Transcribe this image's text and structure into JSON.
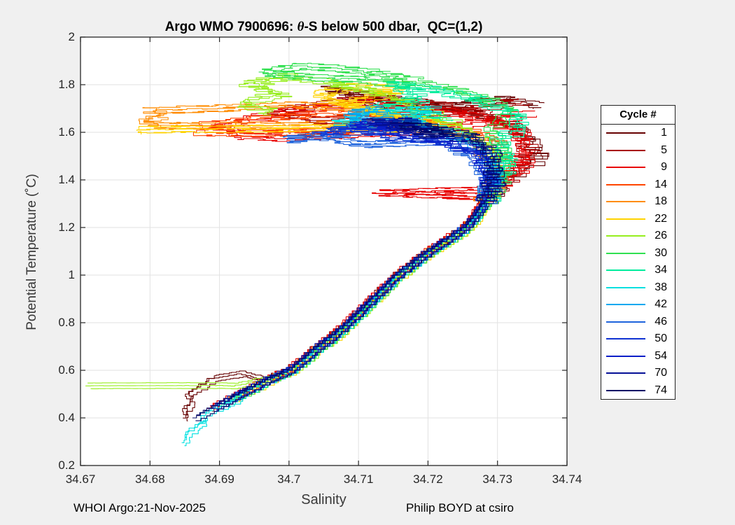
{
  "title": {
    "prefix": "Argo WMO 7900696: ",
    "theta": "θ",
    "suffix": "-S below 500 dbar,  QC=(1,2)"
  },
  "footer": {
    "left": "WHOI Argo:21-Nov-2025",
    "right": "Philip BOYD at csiro"
  },
  "chart_data": {
    "type": "line",
    "title": "Argo WMO 7900696: θ-S below 500 dbar,  QC=(1,2)",
    "xlabel": "Salinity",
    "ylabel": "Potential Temperature (˚C)",
    "xlim": [
      34.67,
      34.74
    ],
    "ylim": [
      0.2,
      2.0
    ],
    "x_ticks": [
      34.67,
      34.68,
      34.69,
      34.7,
      34.71,
      34.72,
      34.73,
      34.74
    ],
    "x_tick_labels": [
      "34.67",
      "34.68",
      "34.69",
      "34.7",
      "34.71",
      "34.72",
      "34.73",
      "34.74"
    ],
    "y_ticks": [
      0.2,
      0.4,
      0.6,
      0.8,
      1.0,
      1.2,
      1.4,
      1.6,
      1.8,
      2.0
    ],
    "y_tick_labels": [
      "0.2",
      "0.4",
      "0.6",
      "0.8",
      "1",
      "1.2",
      "1.4",
      "1.6",
      "1.8",
      "2"
    ],
    "grid": true,
    "grid_color": "#e2e2e2",
    "axis_color": "#262626",
    "plot_bg": "#ffffff",
    "figure_bg": "#f0f0f0",
    "legend_title": "Cycle #",
    "legend_position": "right-outside",
    "spine": [
      [
        34.6865,
        0.4
      ],
      [
        34.689,
        0.44
      ],
      [
        34.6915,
        0.48
      ],
      [
        34.6942,
        0.52
      ],
      [
        34.6968,
        0.56
      ],
      [
        34.7,
        0.6
      ],
      [
        34.7022,
        0.65
      ],
      [
        34.7042,
        0.7
      ],
      [
        34.7065,
        0.75
      ],
      [
        34.7085,
        0.8
      ],
      [
        34.7103,
        0.85
      ],
      [
        34.712,
        0.9
      ],
      [
        34.7138,
        0.95
      ],
      [
        34.7155,
        1.0
      ],
      [
        34.7178,
        1.05
      ],
      [
        34.72,
        1.1
      ],
      [
        34.7228,
        1.15
      ],
      [
        34.7252,
        1.2
      ],
      [
        34.7268,
        1.25
      ],
      [
        34.728,
        1.3
      ]
    ],
    "render": {
      "copies": 3,
      "copy_s_offsets": [
        -0.0003,
        0,
        0.0003
      ],
      "copy_t_offsets": [
        0,
        0.012,
        -0.012
      ],
      "step_s": 0.0006,
      "step_t": 0.012,
      "jitter_s_low": 0.00028,
      "jitter_s_high": 0.0015,
      "jitter_t_factor": 2.2,
      "t_break": 1.32,
      "line_width": 1.1
    },
    "series": [
      {
        "name": "1",
        "color": "#660000",
        "start_t": 0.56,
        "s_offset": -0.0004,
        "tail": [
          [
            34.6853,
            0.4
          ],
          [
            34.685,
            0.44
          ],
          [
            34.6862,
            0.47
          ],
          [
            34.6855,
            0.5
          ],
          [
            34.6872,
            0.53
          ],
          [
            34.689,
            0.565
          ],
          [
            34.693,
            0.585
          ],
          [
            34.6964,
            0.56
          ]
        ],
        "top": [
          [
            34.73,
            1.38
          ],
          [
            34.734,
            1.46
          ],
          [
            34.736,
            1.5
          ],
          [
            34.7355,
            1.56
          ],
          [
            34.732,
            1.63
          ],
          [
            34.727,
            1.68
          ],
          [
            34.72,
            1.72
          ],
          [
            34.712,
            1.75
          ],
          [
            34.706,
            1.78
          ],
          [
            34.712,
            1.72
          ],
          [
            34.719,
            1.7
          ],
          [
            34.726,
            1.72
          ],
          [
            34.731,
            1.74
          ],
          [
            34.7355,
            1.71
          ]
        ]
      },
      {
        "name": "5",
        "color": "#a80000",
        "start_t": 0.48,
        "s_offset": -0.0003,
        "top": [
          [
            34.731,
            1.4
          ],
          [
            34.7335,
            1.46
          ],
          [
            34.7345,
            1.54
          ],
          [
            34.733,
            1.62
          ],
          [
            34.728,
            1.68
          ],
          [
            34.721,
            1.72
          ],
          [
            34.713,
            1.75
          ],
          [
            34.705,
            1.72
          ],
          [
            34.698,
            1.68
          ],
          [
            34.704,
            1.65
          ],
          [
            34.712,
            1.66
          ],
          [
            34.72,
            1.68
          ],
          [
            34.727,
            1.7
          ],
          [
            34.733,
            1.73
          ]
        ]
      },
      {
        "name": "9",
        "color": "#e80000",
        "start_t": 0.44,
        "s_offset": -0.0005,
        "top": [
          [
            34.728,
            1.33
          ],
          [
            34.7135,
            1.345
          ],
          [
            34.728,
            1.36
          ],
          [
            34.731,
            1.4
          ],
          [
            34.733,
            1.44
          ],
          [
            34.734,
            1.52
          ],
          [
            34.7335,
            1.6
          ],
          [
            34.728,
            1.66
          ],
          [
            34.72,
            1.7
          ],
          [
            34.712,
            1.73
          ],
          [
            34.703,
            1.7
          ],
          [
            34.695,
            1.66
          ],
          [
            34.69,
            1.62
          ],
          [
            34.693,
            1.585
          ],
          [
            34.7,
            1.575
          ],
          [
            34.708,
            1.59
          ],
          [
            34.716,
            1.6
          ],
          [
            34.724,
            1.625
          ],
          [
            34.73,
            1.65
          ],
          [
            34.734,
            1.68
          ]
        ]
      },
      {
        "name": "14",
        "color": "#ff4500",
        "start_t": 0.48,
        "s_offset": -0.0002,
        "top": [
          [
            34.73,
            1.4
          ],
          [
            34.731,
            1.45
          ],
          [
            34.73,
            1.55
          ],
          [
            34.725,
            1.62
          ],
          [
            34.716,
            1.66
          ],
          [
            34.706,
            1.68
          ],
          [
            34.697,
            1.66
          ],
          [
            34.689,
            1.63
          ],
          [
            34.687,
            1.6
          ],
          [
            34.694,
            1.595
          ],
          [
            34.703,
            1.6
          ],
          [
            34.712,
            1.62
          ],
          [
            34.72,
            1.645
          ]
        ]
      },
      {
        "name": "18",
        "color": "#ff8c00",
        "start_t": 0.52,
        "s_offset": -0.0001,
        "top": [
          [
            34.7295,
            1.4
          ],
          [
            34.7295,
            1.48
          ],
          [
            34.727,
            1.56
          ],
          [
            34.72,
            1.64
          ],
          [
            34.71,
            1.7
          ],
          [
            34.7,
            1.715
          ],
          [
            34.69,
            1.7
          ],
          [
            34.683,
            1.695
          ],
          [
            34.68,
            1.688
          ],
          [
            34.681,
            1.665
          ],
          [
            34.6795,
            1.648
          ],
          [
            34.68,
            1.628
          ],
          [
            34.69,
            1.627
          ],
          [
            34.702,
            1.63
          ],
          [
            34.712,
            1.636
          ],
          [
            34.72,
            1.642
          ]
        ]
      },
      {
        "name": "22",
        "color": "#ffd300",
        "start_t": 0.48,
        "s_offset": 0.0006,
        "top": [
          [
            34.7295,
            1.4
          ],
          [
            34.729,
            1.5
          ],
          [
            34.727,
            1.58
          ],
          [
            34.721,
            1.64
          ],
          [
            34.711,
            1.7
          ],
          [
            34.704,
            1.76
          ],
          [
            34.71,
            1.8
          ],
          [
            34.716,
            1.77
          ],
          [
            34.708,
            1.72
          ],
          [
            34.721,
            1.615
          ],
          [
            34.7,
            1.617
          ],
          [
            34.688,
            1.613
          ],
          [
            34.679,
            1.612
          ],
          [
            34.6793,
            1.604
          ]
        ]
      },
      {
        "name": "26",
        "color": "#96ee1e",
        "start_t": 0.6,
        "s_offset": 0.0005,
        "tail": [
          [
            34.671,
            0.535
          ],
          [
            34.69,
            0.536
          ],
          [
            34.692,
            0.534
          ],
          [
            34.694,
            0.545
          ],
          [
            34.696,
            0.558
          ],
          [
            34.6985,
            0.578
          ],
          [
            34.6998,
            0.6
          ]
        ],
        "top": [
          [
            34.73,
            1.42
          ],
          [
            34.73,
            1.52
          ],
          [
            34.724,
            1.64
          ],
          [
            34.716,
            1.74
          ],
          [
            34.708,
            1.8
          ],
          [
            34.7,
            1.83
          ],
          [
            34.694,
            1.8
          ],
          [
            34.699,
            1.76
          ],
          [
            34.693,
            1.72
          ],
          [
            34.698,
            1.68
          ]
        ]
      },
      {
        "name": "30",
        "color": "#30e050",
        "start_t": 0.48,
        "s_offset": 0.0004,
        "top": [
          [
            34.7305,
            1.42
          ],
          [
            34.731,
            1.52
          ],
          [
            34.729,
            1.62
          ],
          [
            34.732,
            1.7
          ],
          [
            34.726,
            1.76
          ],
          [
            34.718,
            1.82
          ],
          [
            34.71,
            1.86
          ],
          [
            34.702,
            1.88
          ],
          [
            34.696,
            1.85
          ],
          [
            34.703,
            1.83
          ],
          [
            34.711,
            1.82
          ],
          [
            34.718,
            1.79
          ]
        ]
      },
      {
        "name": "34",
        "color": "#00ec9c",
        "start_t": 0.44,
        "s_offset": 0.0003,
        "top": [
          [
            34.7305,
            1.4
          ],
          [
            34.732,
            1.48
          ],
          [
            34.73,
            1.56
          ],
          [
            34.733,
            1.62
          ],
          [
            34.733,
            1.68
          ],
          [
            34.727,
            1.74
          ],
          [
            34.721,
            1.78
          ],
          [
            34.715,
            1.8
          ],
          [
            34.719,
            1.74
          ],
          [
            34.713,
            1.7
          ],
          [
            34.723,
            1.66
          ]
        ]
      },
      {
        "name": "38",
        "color": "#00e0e0",
        "start_t": 0.52,
        "s_offset": 0.0002,
        "tail": [
          [
            34.6849,
            0.295
          ],
          [
            34.6853,
            0.33
          ],
          [
            34.6865,
            0.36
          ],
          [
            34.688,
            0.385
          ],
          [
            34.6875,
            0.41
          ],
          [
            34.6895,
            0.44
          ],
          [
            34.692,
            0.47
          ],
          [
            34.694,
            0.515
          ]
        ],
        "top": [
          [
            34.7295,
            1.42
          ],
          [
            34.729,
            1.52
          ],
          [
            34.724,
            1.6
          ],
          [
            34.717,
            1.65
          ],
          [
            34.721,
            1.7
          ],
          [
            34.713,
            1.68
          ],
          [
            34.707,
            1.64
          ],
          [
            34.713,
            1.62
          ]
        ]
      },
      {
        "name": "42",
        "color": "#00a8f0",
        "start_t": 0.48,
        "s_offset": 0.0001,
        "top": [
          [
            34.7295,
            1.42
          ],
          [
            34.728,
            1.52
          ],
          [
            34.723,
            1.6
          ],
          [
            34.716,
            1.655
          ],
          [
            34.712,
            1.7
          ],
          [
            34.708,
            1.67
          ],
          [
            34.714,
            1.64
          ],
          [
            34.719,
            1.625
          ]
        ]
      },
      {
        "name": "46",
        "color": "#1e64dc",
        "start_t": 0.52,
        "s_offset": 0.0,
        "top": [
          [
            34.729,
            1.4
          ],
          [
            34.727,
            1.5
          ],
          [
            34.721,
            1.56
          ],
          [
            34.711,
            1.55
          ],
          [
            34.705,
            1.58
          ],
          [
            34.7,
            1.57
          ],
          [
            34.708,
            1.6
          ],
          [
            34.716,
            1.605
          ]
        ]
      },
      {
        "name": "50",
        "color": "#0f32d2",
        "start_t": 0.44,
        "s_offset": -0.0001,
        "top": [
          [
            34.7292,
            1.4
          ],
          [
            34.728,
            1.5
          ],
          [
            34.723,
            1.56
          ],
          [
            34.714,
            1.58
          ],
          [
            34.71,
            1.62
          ],
          [
            34.705,
            1.6
          ],
          [
            34.713,
            1.63
          ],
          [
            34.72,
            1.625
          ]
        ]
      },
      {
        "name": "54",
        "color": "#0a1ec8",
        "start_t": 0.48,
        "s_offset": -0.0002,
        "top": [
          [
            34.729,
            1.42
          ],
          [
            34.727,
            1.52
          ],
          [
            34.72,
            1.575
          ],
          [
            34.713,
            1.61
          ],
          [
            34.716,
            1.64
          ],
          [
            34.709,
            1.63
          ],
          [
            34.717,
            1.615
          ]
        ]
      },
      {
        "name": "70",
        "color": "#051096",
        "start_t": 0.44,
        "s_offset": -0.0001,
        "top": [
          [
            34.7293,
            1.4
          ],
          [
            34.7295,
            1.5
          ],
          [
            34.727,
            1.56
          ],
          [
            34.721,
            1.6
          ],
          [
            34.715,
            1.62
          ],
          [
            34.718,
            1.65
          ],
          [
            34.712,
            1.64
          ],
          [
            34.719,
            1.6
          ]
        ]
      },
      {
        "name": "74",
        "color": "#000566",
        "start_t": 0.4,
        "s_offset": 0.0,
        "top": [
          [
            34.7295,
            1.4
          ],
          [
            34.7295,
            1.5
          ],
          [
            34.728,
            1.57
          ],
          [
            34.724,
            1.6
          ],
          [
            34.719,
            1.59
          ],
          [
            34.722,
            1.62
          ],
          [
            34.716,
            1.63
          ],
          [
            34.723,
            1.6
          ]
        ]
      }
    ]
  }
}
